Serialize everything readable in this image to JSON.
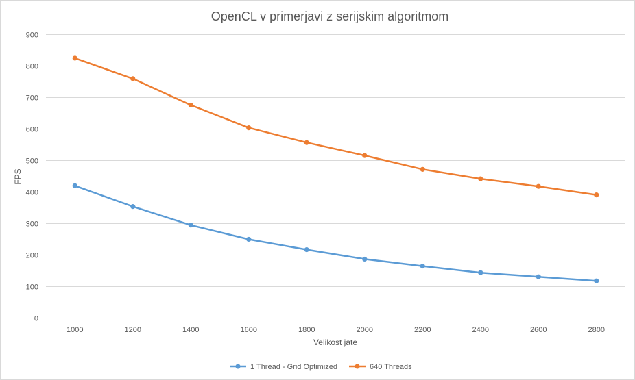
{
  "chart_data": {
    "type": "line",
    "title": "OpenCL v primerjavi z serijskim algoritmom",
    "xlabel": "Velikost jate",
    "ylabel": "FPS",
    "x": [
      1000,
      1200,
      1400,
      1600,
      1800,
      2000,
      2200,
      2400,
      2600,
      2800
    ],
    "ylim": [
      0,
      900
    ],
    "yticks": [
      0,
      100,
      200,
      300,
      400,
      500,
      600,
      700,
      800,
      900
    ],
    "grid": true,
    "legend_position": "bottom",
    "series": [
      {
        "name": "1 Thread - Grid Optimized",
        "color": "#5b9bd5",
        "values": [
          419,
          353,
          294,
          249,
          216,
          186,
          164,
          143,
          130,
          117
        ]
      },
      {
        "name": "640 Threads",
        "color": "#ed7d31",
        "values": [
          824,
          759,
          675,
          603,
          556,
          515,
          471,
          441,
          417,
          390
        ]
      }
    ]
  }
}
